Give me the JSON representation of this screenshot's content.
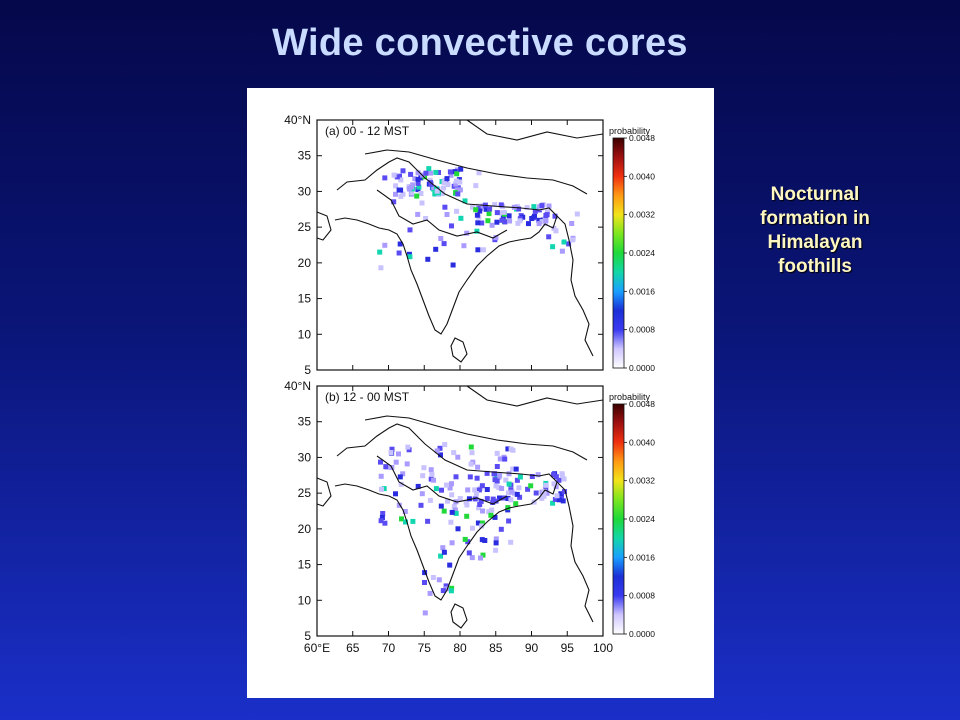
{
  "slide": {
    "title": "Wide convective cores",
    "annotation": [
      "Nocturnal",
      "formation in",
      "Himalayan",
      "foothills"
    ]
  },
  "colorbar": {
    "title": "probability",
    "ticks": [
      "0.0048",
      "0.0040",
      "0.0032",
      "0.0024",
      "0.0016",
      "0.0008",
      "0.0000"
    ],
    "stops": [
      "#ffffff",
      "#cfc6ff",
      "#3a3af0",
      "#1b2fd6",
      "#1aa0ff",
      "#12d6a8",
      "#1fd93a",
      "#7be61f",
      "#f2e31a",
      "#ff9a14",
      "#f03010",
      "#a01010",
      "#3a0000"
    ]
  },
  "map": {
    "lat_labels": [
      "40°N",
      "35",
      "30",
      "25",
      "20",
      "15",
      "10",
      "5"
    ],
    "lon_labels": [
      "60°E",
      "65",
      "70",
      "75",
      "80",
      "85",
      "90",
      "95",
      "100"
    ],
    "lon_range": [
      60,
      100
    ],
    "lat_range": [
      5,
      40
    ],
    "panels": [
      {
        "label": "(a) 00 - 12 MST"
      },
      {
        "label": "(b) 12 - 00 MST"
      }
    ]
  }
}
